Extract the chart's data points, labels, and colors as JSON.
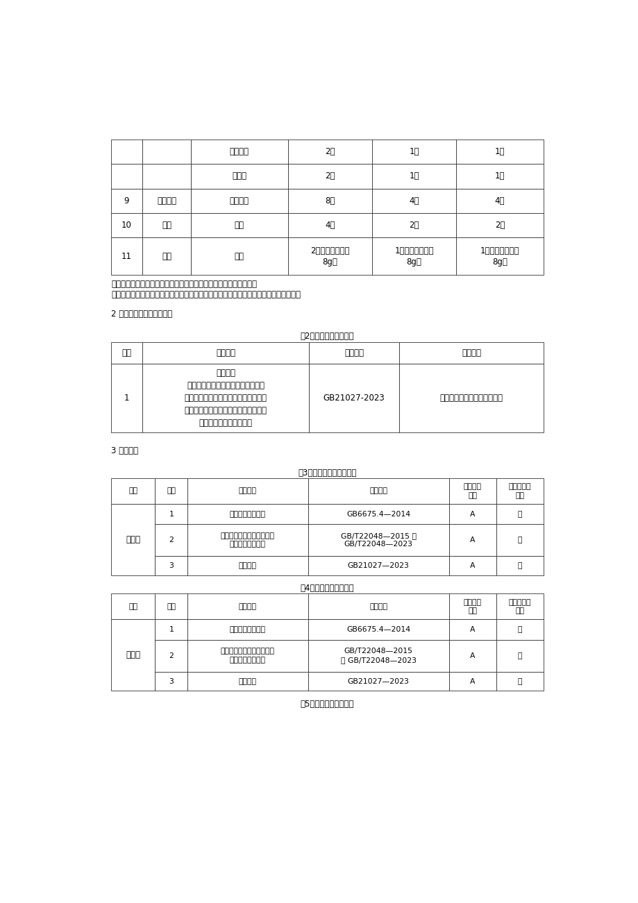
{
  "bg_color": "#ffffff",
  "note1": "注：抽样时以最小独立包装为抽样单元，样品数满足上述抽样数量。",
  "note2": "如单支样品的规格少于表中规定，则以总量换算成相应样品数量（即支数或个数）抽取。",
  "section2_title": "2 抽查产品名称及执行标准",
  "table2_title": "表2产品名称及执行标准",
  "table2_headers": [
    "序号",
    "产品名称",
    "标准编号",
    "标准名称"
  ],
  "table2_row_col1": "学生文具\n（美术用品、书写笔、记号笔、橡皮\n擦、涂改制品、胶黏剂、笔袋、卷削类\n文具、绘图仪尺、学生圆规、文具盒、\n课业簿册、书套、彩泥）",
  "table2_row_col2": "GB21027-2023",
  "table2_row_col3": "《学生用品的安全通用要求》",
  "section3_title": "3 检验依据",
  "table3_title": "表3学生文具（美术用品）",
  "table4_title": "表4学生文具（书写笔）",
  "table5_title": "表5学生文具（记号笔）",
  "table34_headers": [
    "分类",
    "序号",
    "检验项目",
    "检验方法",
    "重要程度\n分级",
    "是否为环保\n指标"
  ],
  "table3_rows": [
    [
      "",
      "1",
      "可迁移元素的限量",
      "GB6675.4—2014",
      "A",
      "是"
    ],
    [
      "安全性",
      "2",
      "可触及的塑料件中邻苯二甲\n酸酯增塑剂的限量",
      "GB/T22048—2015 或\nGB/T22048—2023",
      "A",
      "是"
    ],
    [
      "",
      "3",
      "笔套安全",
      "GB21027—2023",
      "A",
      "否"
    ]
  ],
  "table4_rows": [
    [
      "",
      "1",
      "可迁移元素的限量",
      "GB6675.4—2014",
      "A",
      "是"
    ],
    [
      "安全性",
      "2",
      "可触及的塑料件中邻苯二甲\n酸酯增塑剂的限量",
      "GB/T22048—2015\n或 GB/T22048—2023",
      "A",
      "是"
    ],
    [
      "",
      "3",
      "笔套安全",
      "GB21027—2023",
      "A",
      "否"
    ]
  ]
}
